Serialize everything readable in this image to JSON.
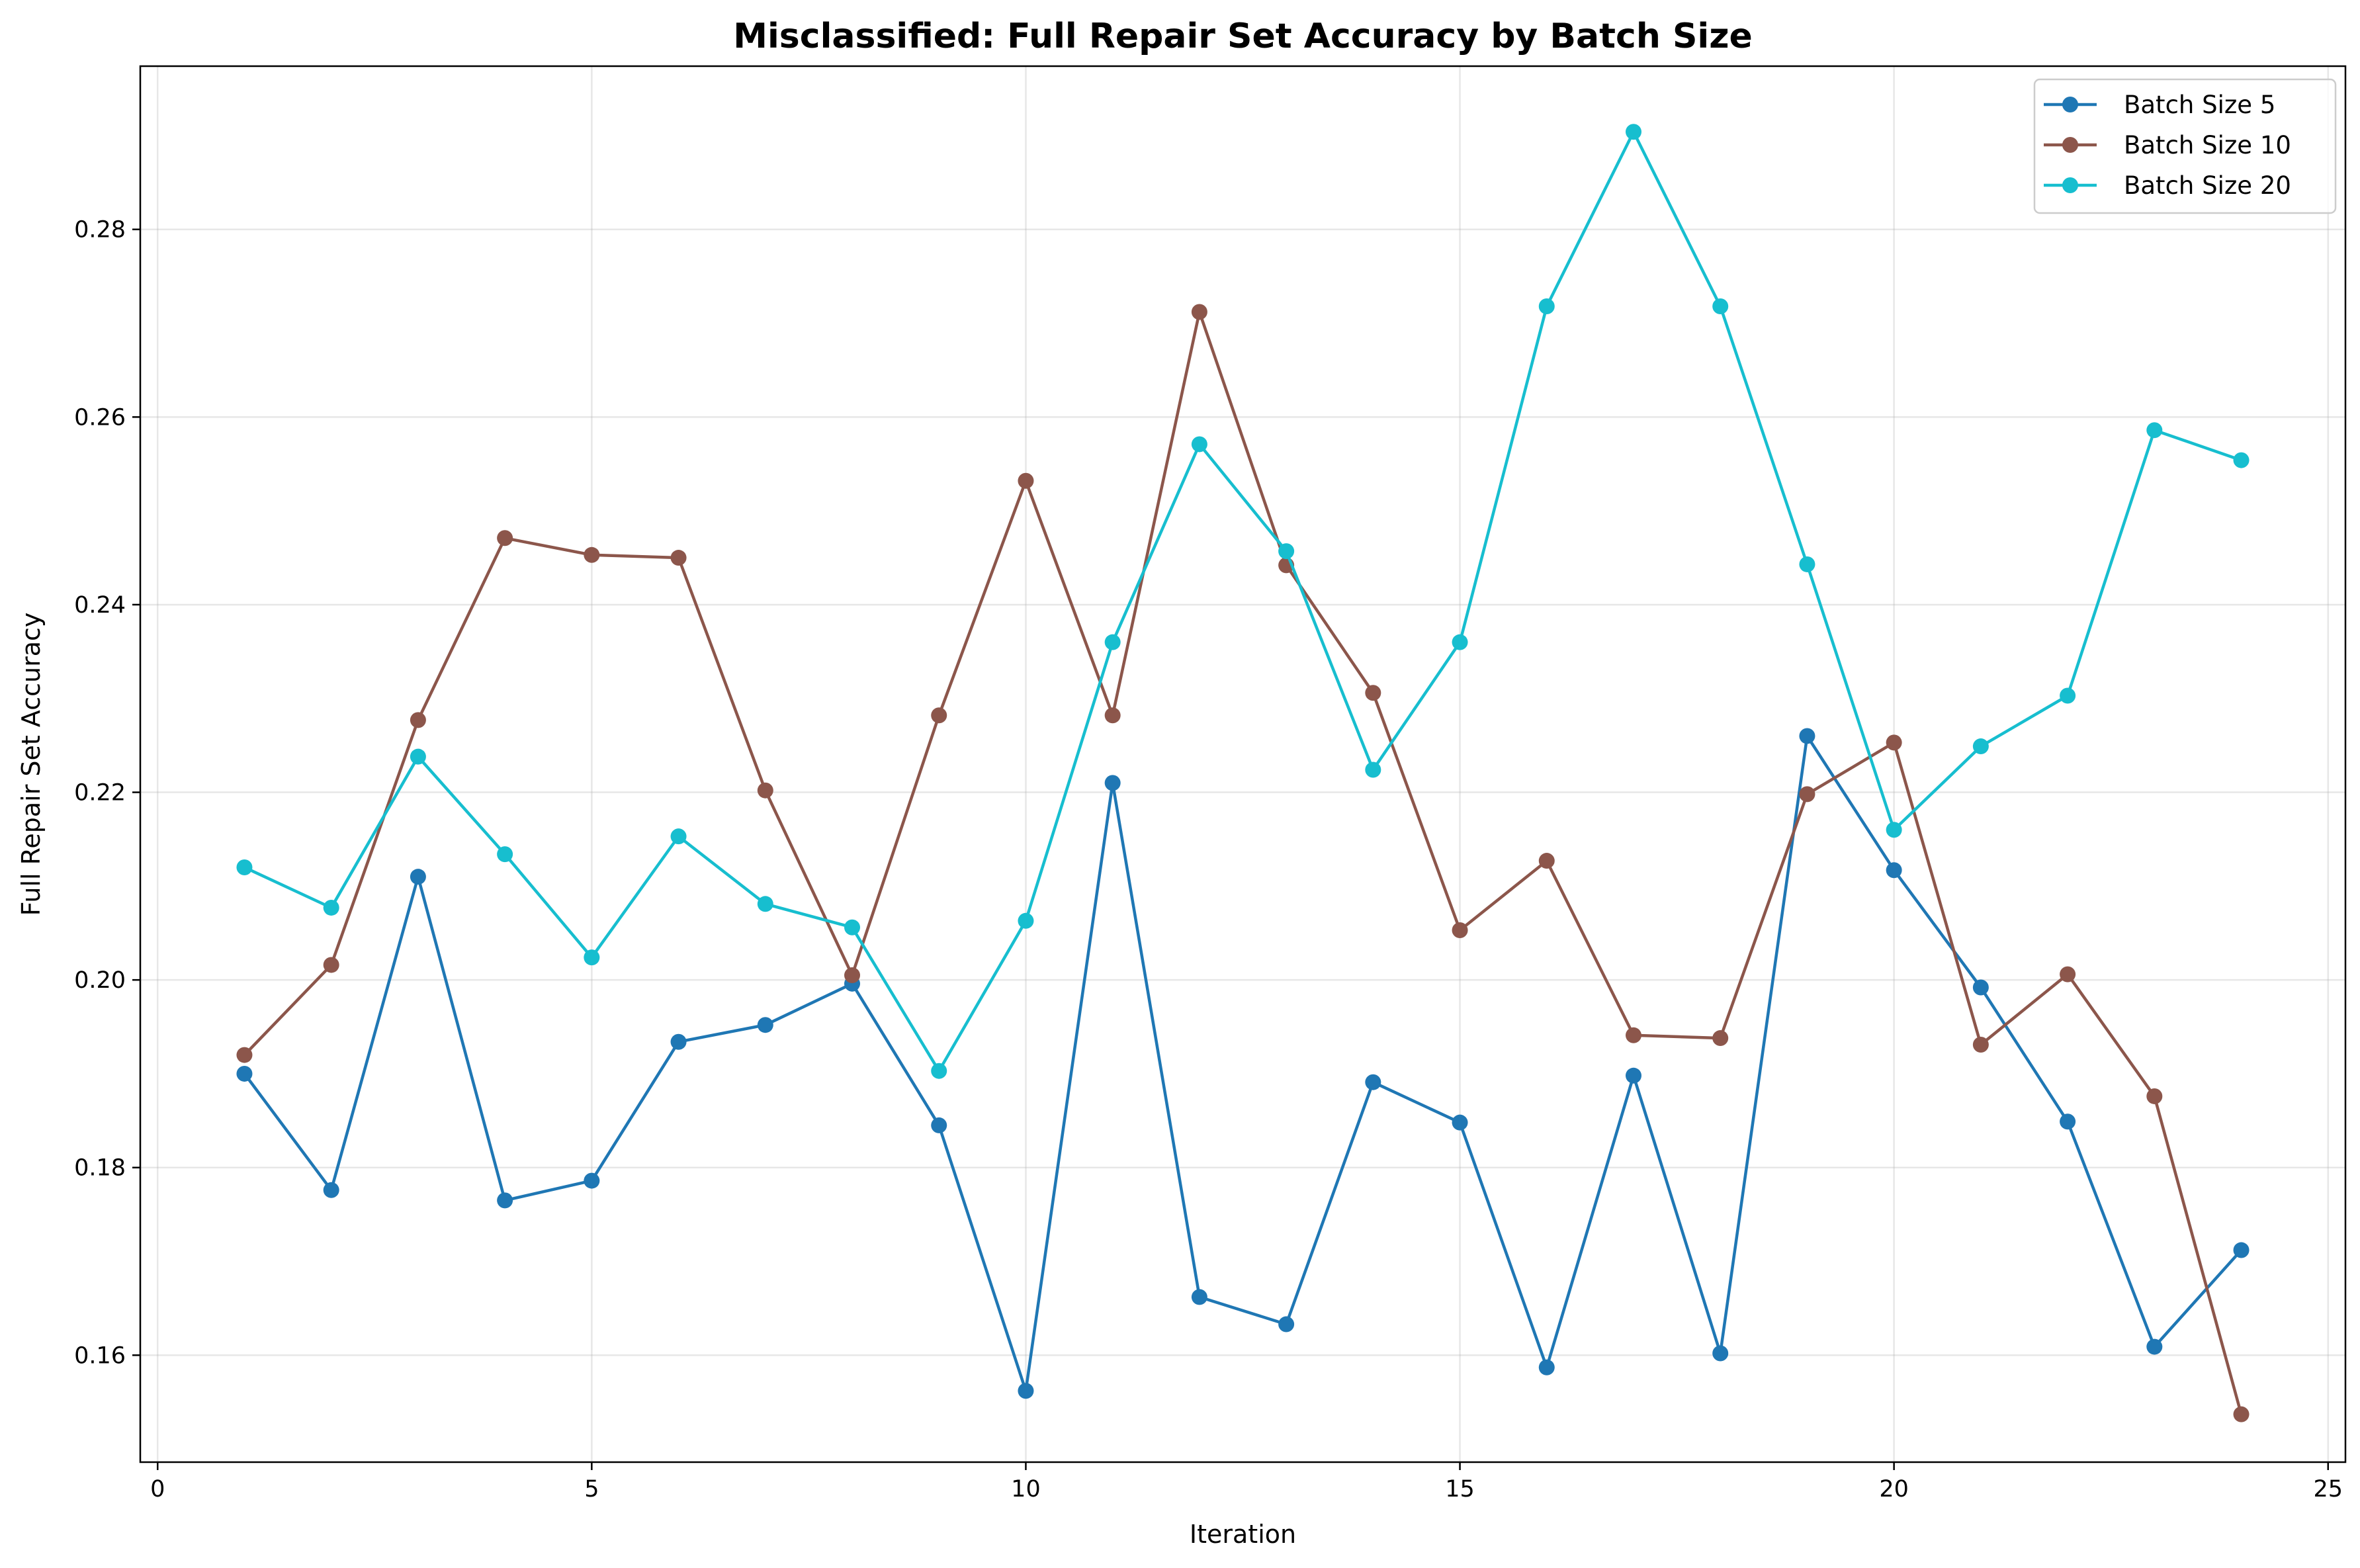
{
  "chart_data": {
    "type": "line",
    "title": "Misclassified: Full Repair Set Accuracy by Batch Size",
    "xlabel": "Iteration",
    "ylabel": "Full Repair Set Accuracy",
    "xlim": [
      -0.2,
      25.2
    ],
    "ylim": [
      0.1486,
      0.2974
    ],
    "xticks": [
      0,
      5,
      10,
      15,
      20,
      25
    ],
    "xtick_labels": [
      "0",
      "5",
      "10",
      "15",
      "20",
      "25"
    ],
    "yticks": [
      0.16,
      0.18,
      0.2,
      0.22,
      0.24,
      0.26,
      0.28
    ],
    "ytick_labels": [
      "0.16",
      "0.18",
      "0.20",
      "0.22",
      "0.24",
      "0.26",
      "0.28"
    ],
    "grid": true,
    "legend_position": "top-right",
    "x": [
      1,
      2,
      3,
      4,
      5,
      6,
      7,
      8,
      9,
      10,
      11,
      12,
      13,
      14,
      15,
      16,
      17,
      18,
      19,
      20,
      21,
      22,
      23,
      24
    ],
    "series": [
      {
        "name": "Batch Size 5",
        "color": "#1f77b4",
        "values": [
          0.19,
          0.1776,
          0.211,
          0.1765,
          0.1786,
          0.1934,
          0.1952,
          0.1996,
          0.1845,
          0.1562,
          0.221,
          0.1662,
          0.1633,
          0.1891,
          0.1848,
          0.1587,
          0.1898,
          0.1602,
          0.226,
          0.2117,
          0.1992,
          0.1849,
          0.1609,
          0.1712
        ]
      },
      {
        "name": "Batch Size 10",
        "color": "#8c564b",
        "values": [
          0.192,
          0.2016,
          0.2277,
          0.2471,
          0.2453,
          0.245,
          0.2202,
          0.2005,
          0.2282,
          0.2532,
          0.2282,
          0.2712,
          0.2442,
          0.2306,
          0.2053,
          0.2127,
          0.1941,
          0.1938,
          0.2198,
          0.2253,
          0.1931,
          0.2006,
          0.1876,
          0.1537
        ]
      },
      {
        "name": "Batch Size 20",
        "color": "#17becf",
        "values": [
          0.212,
          0.2077,
          0.2238,
          0.2134,
          0.2024,
          0.2153,
          0.2081,
          0.2056,
          0.1903,
          0.2063,
          0.236,
          0.2571,
          0.2457,
          0.2224,
          0.236,
          0.2718,
          0.2904,
          0.2718,
          0.2443,
          0.216,
          0.2249,
          0.2303,
          0.2586,
          0.2554
        ]
      }
    ]
  }
}
